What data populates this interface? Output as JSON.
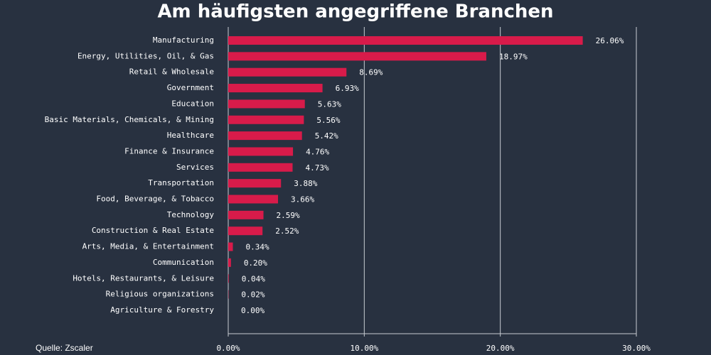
{
  "chart_data": {
    "type": "hbar",
    "title": "Am häufigsten angegriffene Branchen",
    "source": "Quelle: Zscaler",
    "categories": [
      "Manufacturing",
      "Energy, Utilities, Oil, & Gas",
      "Retail & Wholesale",
      "Government",
      "Education",
      "Basic Materials, Chemicals, & Mining",
      "Healthcare",
      "Finance & Insurance",
      "Services",
      "Transportation",
      "Food, Beverage, & Tobacco",
      "Technology",
      "Construction & Real Estate",
      "Arts, Media, & Entertainment",
      "Communication",
      "Hotels, Restaurants, & Leisure",
      "Religious organizations",
      "Agriculture & Forestry"
    ],
    "values": [
      26.06,
      18.97,
      8.69,
      6.93,
      5.63,
      5.56,
      5.42,
      4.76,
      4.73,
      3.88,
      3.66,
      2.59,
      2.52,
      0.34,
      0.2,
      0.04,
      0.02,
      0.0
    ],
    "value_labels": [
      "26.06%",
      "18.97%",
      "8.69%",
      "6.93%",
      "5.63%",
      "5.56%",
      "5.42%",
      "4.76%",
      "4.73%",
      "3.88%",
      "3.66%",
      "2.59%",
      "2.52%",
      "0.34%",
      "0.20%",
      "0.04%",
      "0.02%",
      "0.00%"
    ],
    "color": "#d81b4a",
    "xlim": [
      0,
      30
    ],
    "xticks": [
      {
        "value": 0,
        "label": "0.00%"
      },
      {
        "value": 10,
        "label": "10.00%"
      },
      {
        "value": 20,
        "label": "20.00%"
      },
      {
        "value": 30,
        "label": "30.00%"
      }
    ],
    "grid": true
  }
}
